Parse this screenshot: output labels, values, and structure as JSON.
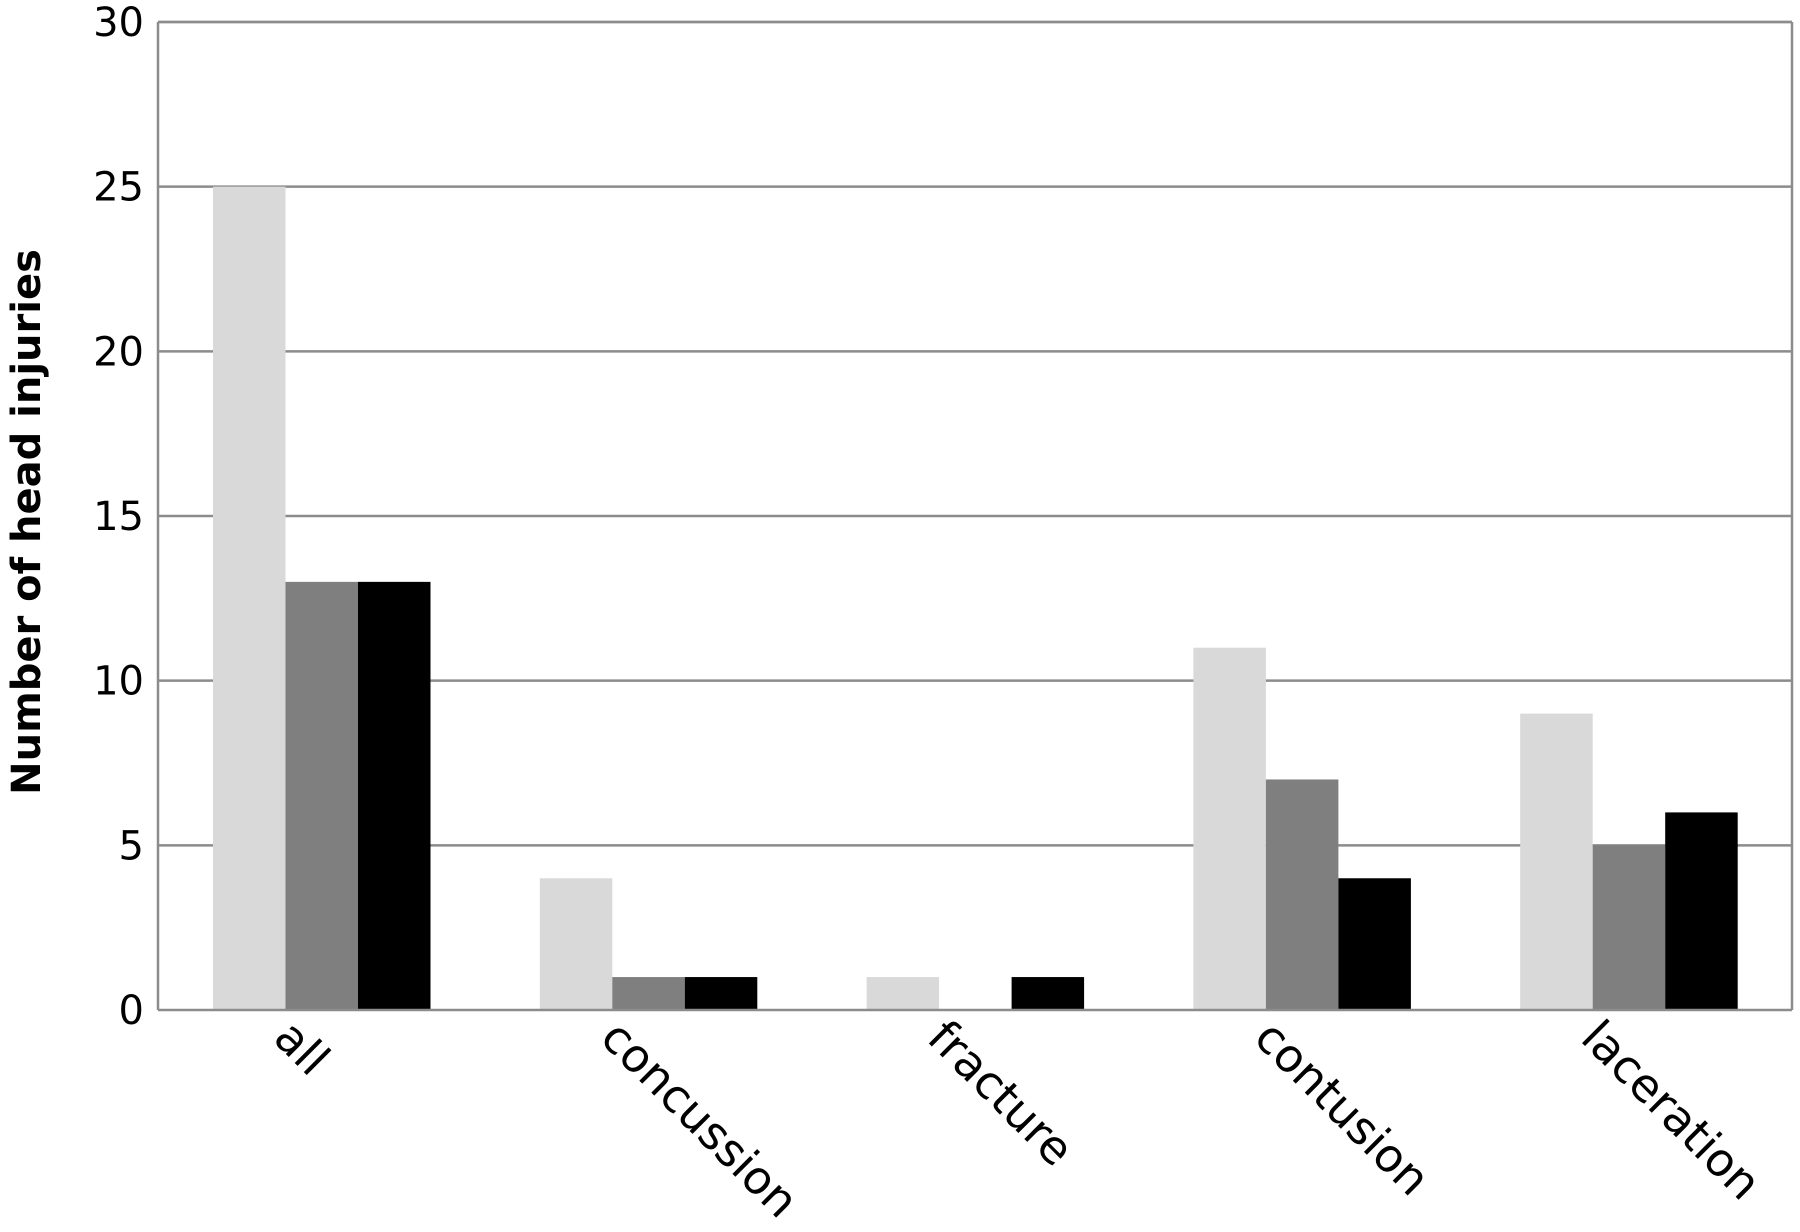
{
  "chart_data": {
    "type": "bar",
    "title": "",
    "xlabel": "",
    "ylabel": "Number of head injuries",
    "ylim": [
      0,
      30
    ],
    "yticks": [
      0,
      5,
      10,
      15,
      20,
      25,
      30
    ],
    "grid": true,
    "legend": "none",
    "categories": [
      "all",
      "concussion",
      "fracture",
      "contusion",
      "laceration"
    ],
    "series": [
      {
        "color": "#d9d9d9",
        "values": [
          25,
          4,
          1,
          11,
          9
        ]
      },
      {
        "color": "#7f7f7f",
        "values": [
          13,
          1,
          0,
          7,
          5
        ]
      },
      {
        "color": "#000000",
        "values": [
          13,
          1,
          1,
          4,
          6
        ]
      }
    ]
  }
}
